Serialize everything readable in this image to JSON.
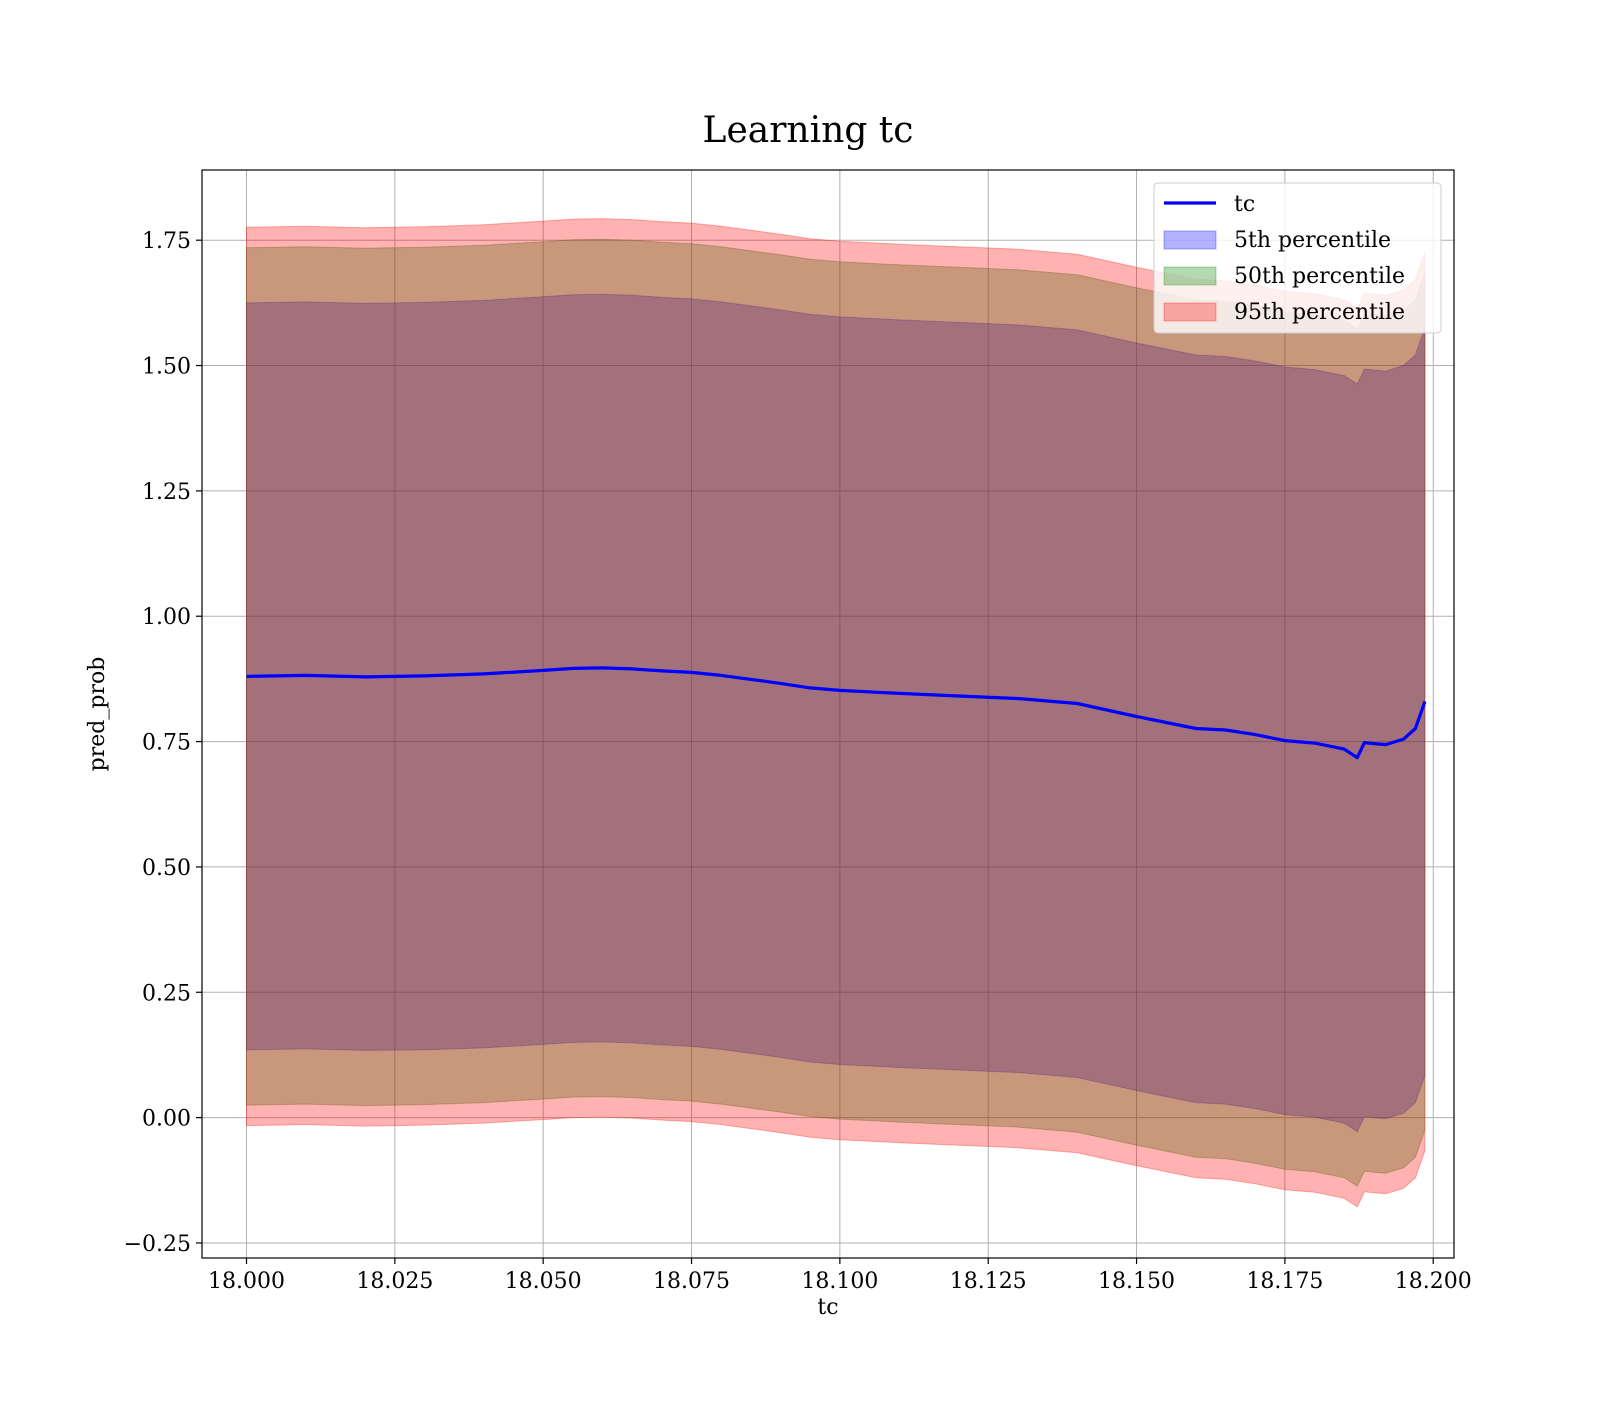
{
  "chart_data": {
    "type": "area",
    "title": "Learning tc",
    "xlabel": "tc",
    "ylabel": "pred_prob",
    "xlim": [
      17.9925,
      18.2035
    ],
    "ylim": [
      -0.28,
      1.89
    ],
    "grid": true,
    "legend_position": "top-right",
    "x_ticks": [
      "18.000",
      "18.025",
      "18.050",
      "18.075",
      "18.100",
      "18.125",
      "18.150",
      "18.175",
      "18.200"
    ],
    "x_tick_values": [
      18.0,
      18.025,
      18.05,
      18.075,
      18.1,
      18.125,
      18.15,
      18.175,
      18.2
    ],
    "y_ticks": [
      "−0.25",
      "0.00",
      "0.25",
      "0.50",
      "0.75",
      "1.00",
      "1.25",
      "1.50",
      "1.75"
    ],
    "y_tick_values": [
      -0.25,
      0.0,
      0.25,
      0.5,
      0.75,
      1.0,
      1.25,
      1.5,
      1.75
    ],
    "x": [
      18.0,
      18.01,
      18.02,
      18.03,
      18.04,
      18.05,
      18.055,
      18.06,
      18.065,
      18.07,
      18.075,
      18.08,
      18.085,
      18.09,
      18.095,
      18.1,
      18.11,
      18.12,
      18.13,
      18.14,
      18.15,
      18.16,
      18.165,
      18.17,
      18.175,
      18.18,
      18.185,
      18.1872,
      18.1884,
      18.19,
      18.192,
      18.195,
      18.197,
      18.1986
    ],
    "series": [
      {
        "name": "tc",
        "kind": "line",
        "color": "#0000ff",
        "values": [
          0.88,
          0.882,
          0.879,
          0.881,
          0.885,
          0.892,
          0.896,
          0.897,
          0.895,
          0.891,
          0.888,
          0.882,
          0.874,
          0.866,
          0.857,
          0.852,
          0.846,
          0.841,
          0.836,
          0.826,
          0.8,
          0.776,
          0.773,
          0.764,
          0.752,
          0.747,
          0.735,
          0.718,
          0.748,
          0.746,
          0.744,
          0.755,
          0.776,
          0.83
        ]
      },
      {
        "name": "5th percentile",
        "kind": "band",
        "color": "#0000ff",
        "lower": [
          0.135,
          0.137,
          0.134,
          0.135,
          0.139,
          0.146,
          0.15,
          0.151,
          0.149,
          0.145,
          0.142,
          0.136,
          0.128,
          0.12,
          0.111,
          0.106,
          0.1,
          0.095,
          0.09,
          0.08,
          0.054,
          0.03,
          0.027,
          0.018,
          0.006,
          0.001,
          -0.011,
          -0.028,
          0.002,
          0.0,
          -0.002,
          0.009,
          0.03,
          0.084
        ],
        "upper": [
          1.625,
          1.627,
          1.624,
          1.626,
          1.63,
          1.637,
          1.641,
          1.642,
          1.64,
          1.636,
          1.633,
          1.627,
          1.619,
          1.611,
          1.602,
          1.597,
          1.591,
          1.586,
          1.581,
          1.571,
          1.545,
          1.521,
          1.518,
          1.509,
          1.497,
          1.492,
          1.48,
          1.463,
          1.493,
          1.491,
          1.489,
          1.5,
          1.521,
          1.576
        ]
      },
      {
        "name": "50th percentile",
        "kind": "band",
        "color": "#008000",
        "lower": [
          0.025,
          0.027,
          0.024,
          0.026,
          0.03,
          0.037,
          0.041,
          0.042,
          0.04,
          0.036,
          0.033,
          0.027,
          0.019,
          0.011,
          0.002,
          -0.003,
          -0.009,
          -0.014,
          -0.019,
          -0.029,
          -0.055,
          -0.079,
          -0.082,
          -0.091,
          -0.103,
          -0.108,
          -0.12,
          -0.137,
          -0.107,
          -0.109,
          -0.111,
          -0.1,
          -0.079,
          -0.025
        ],
        "upper": [
          1.735,
          1.737,
          1.734,
          1.736,
          1.74,
          1.747,
          1.751,
          1.752,
          1.75,
          1.746,
          1.743,
          1.737,
          1.729,
          1.721,
          1.712,
          1.707,
          1.701,
          1.696,
          1.691,
          1.681,
          1.655,
          1.631,
          1.628,
          1.619,
          1.607,
          1.602,
          1.59,
          1.573,
          1.603,
          1.601,
          1.599,
          1.61,
          1.631,
          1.685
        ]
      },
      {
        "name": "95th percentile",
        "kind": "band",
        "color": "#ff0000",
        "lower": [
          -0.016,
          -0.014,
          -0.017,
          -0.015,
          -0.011,
          -0.004,
          0.0,
          0.001,
          -0.001,
          -0.005,
          -0.008,
          -0.014,
          -0.022,
          -0.03,
          -0.039,
          -0.044,
          -0.05,
          -0.055,
          -0.06,
          -0.07,
          -0.096,
          -0.12,
          -0.123,
          -0.132,
          -0.144,
          -0.149,
          -0.161,
          -0.178,
          -0.148,
          -0.15,
          -0.152,
          -0.141,
          -0.12,
          -0.066
        ],
        "upper": [
          1.776,
          1.778,
          1.775,
          1.777,
          1.781,
          1.788,
          1.792,
          1.793,
          1.791,
          1.787,
          1.784,
          1.778,
          1.77,
          1.762,
          1.753,
          1.748,
          1.742,
          1.737,
          1.732,
          1.722,
          1.696,
          1.672,
          1.669,
          1.66,
          1.648,
          1.643,
          1.631,
          1.614,
          1.644,
          1.642,
          1.64,
          1.651,
          1.672,
          1.726
        ]
      }
    ]
  }
}
